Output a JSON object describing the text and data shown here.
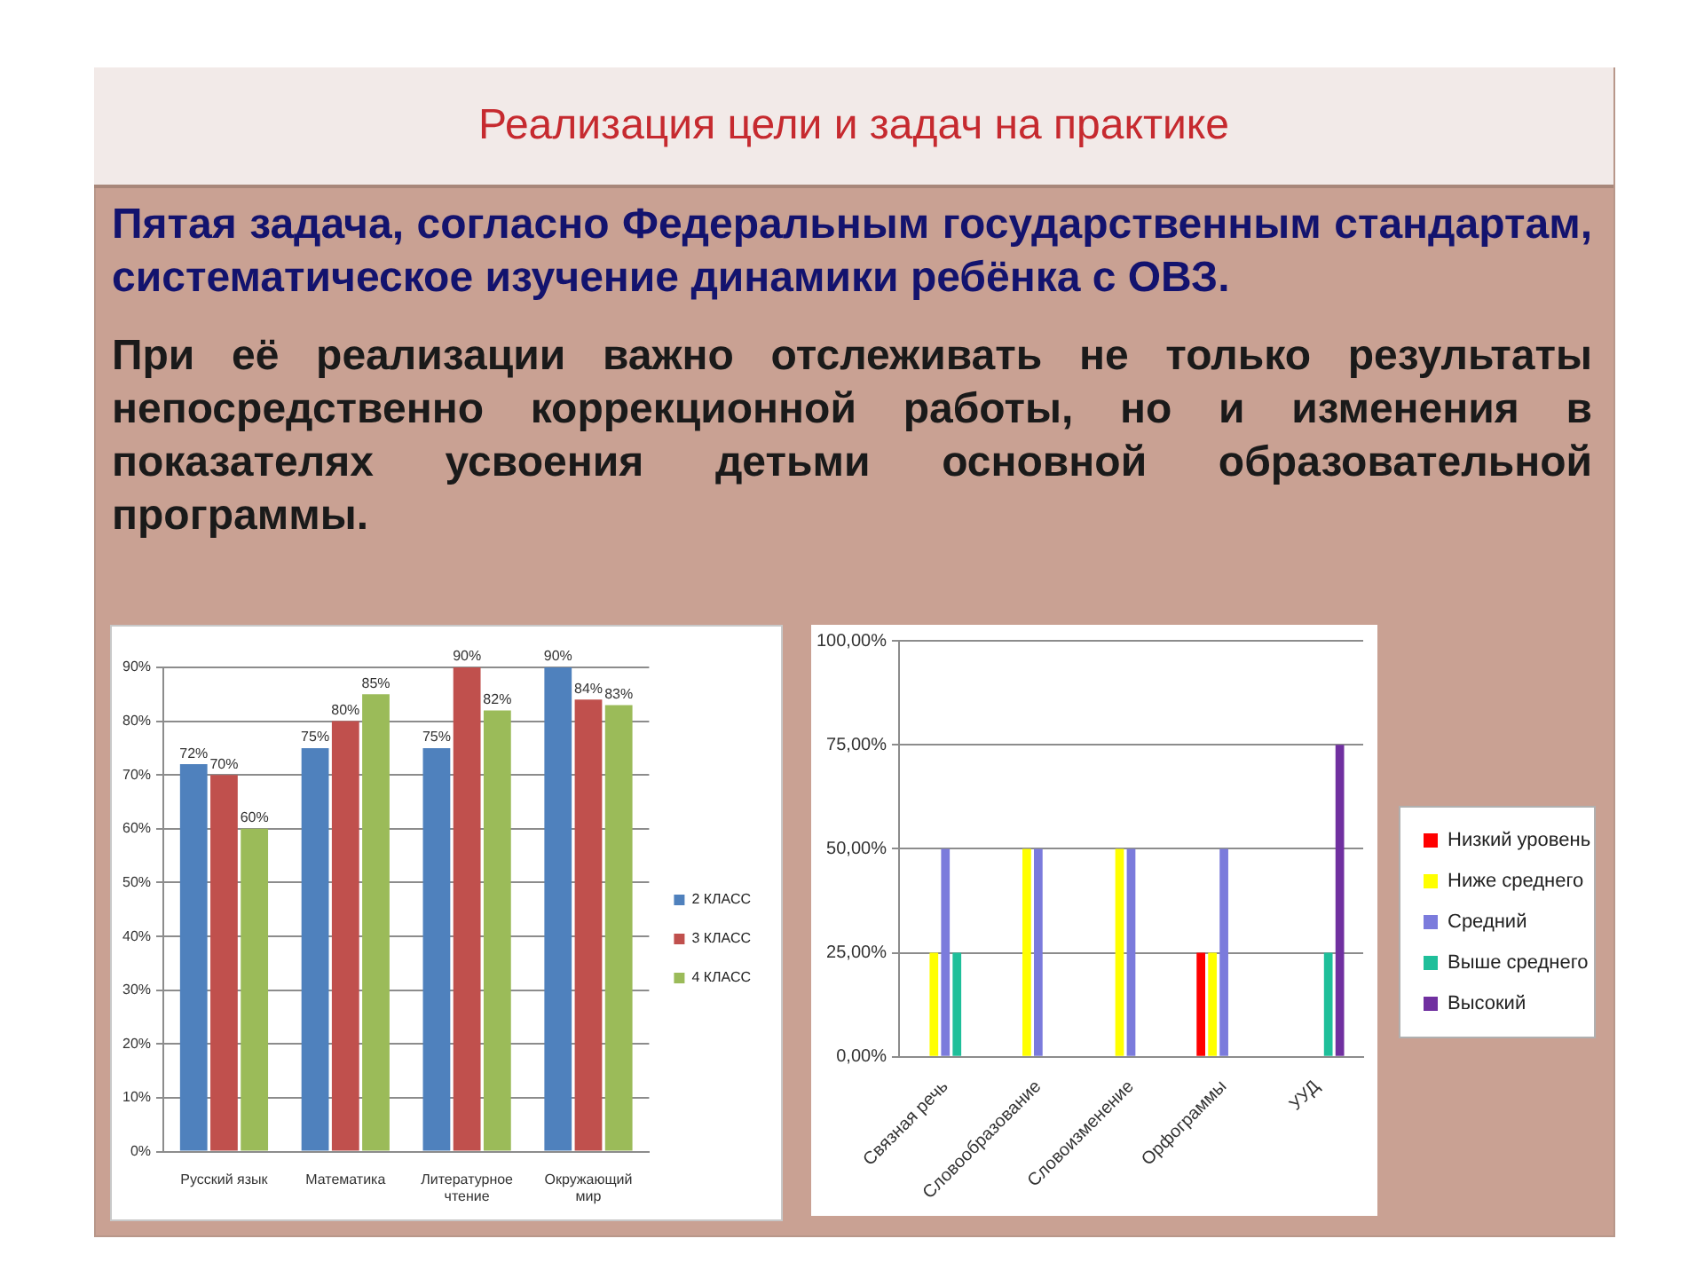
{
  "chart_data": [
    {
      "type": "other",
      "title": "Реализация цели и задач на практике",
      "annotations": [
        "Пятая задача, согласно Федеральным государственным стандартам, систематическое изучение динамики ребёнка с ОВЗ.",
        "При её реализации важно отслеживать не только результаты непосредственно коррекционной работы, но и  изменения в показателях усвоения детьми основной образовательной программы."
      ]
    },
    {
      "type": "bar",
      "categories": [
        "Русский язык",
        "Математика",
        "Литературное чтение",
        "Окружающий мир"
      ],
      "series": [
        {
          "name": "2 КЛАСС",
          "color": "#4f81bd",
          "values": [
            72,
            75,
            75,
            90
          ],
          "value_labels": [
            "72%",
            "75%",
            "75%",
            "90%"
          ]
        },
        {
          "name": "3 КЛАСС",
          "color": "#c0504d",
          "values": [
            70,
            80,
            90,
            84
          ],
          "value_labels": [
            "70%",
            "80%",
            "90%",
            "84%"
          ]
        },
        {
          "name": "4 КЛАСС",
          "color": "#9bbb59",
          "values": [
            60,
            85,
            82,
            83
          ],
          "value_labels": [
            "60%",
            "85%",
            "82%",
            "83%"
          ]
        }
      ],
      "ylim": [
        0,
        90
      ],
      "yticks": [
        {
          "value": 0,
          "label": "0%"
        },
        {
          "value": 10,
          "label": "10%"
        },
        {
          "value": 20,
          "label": "20%"
        },
        {
          "value": 30,
          "label": "30%"
        },
        {
          "value": 40,
          "label": "40%"
        },
        {
          "value": 50,
          "label": "50%"
        },
        {
          "value": 60,
          "label": "60%"
        },
        {
          "value": 70,
          "label": "70%"
        },
        {
          "value": 80,
          "label": "80%"
        },
        {
          "value": 90,
          "label": "90%"
        }
      ],
      "grid": "y",
      "legend": "right"
    },
    {
      "type": "bar",
      "categories": [
        "Связная речь",
        "Словообразование",
        "Словоизменение",
        "Орфограммы",
        "УУД"
      ],
      "series": [
        {
          "name": "Низкий уровень",
          "color": "#ff0000",
          "values": [
            0,
            0,
            0,
            25,
            0
          ]
        },
        {
          "name": "Ниже среднего",
          "color": "#ffff00",
          "values": [
            25,
            50,
            50,
            25,
            0
          ]
        },
        {
          "name": "Средний",
          "color": "#7b7bdc",
          "values": [
            50,
            50,
            50,
            50,
            0
          ]
        },
        {
          "name": "Выше среднего",
          "color": "#1fbf9a",
          "values": [
            25,
            0,
            0,
            0,
            25
          ]
        },
        {
          "name": "Высокий",
          "color": "#7030a0",
          "values": [
            0,
            0,
            0,
            0,
            75
          ]
        }
      ],
      "ylim": [
        0,
        100
      ],
      "yticks": [
        {
          "value": 0,
          "label": "0,00%"
        },
        {
          "value": 25,
          "label": "25,00%"
        },
        {
          "value": 50,
          "label": "50,00%"
        },
        {
          "value": 75,
          "label": "75,00%"
        },
        {
          "value": 100,
          "label": "100,00%"
        }
      ],
      "grid": "y",
      "legend": "right"
    }
  ]
}
